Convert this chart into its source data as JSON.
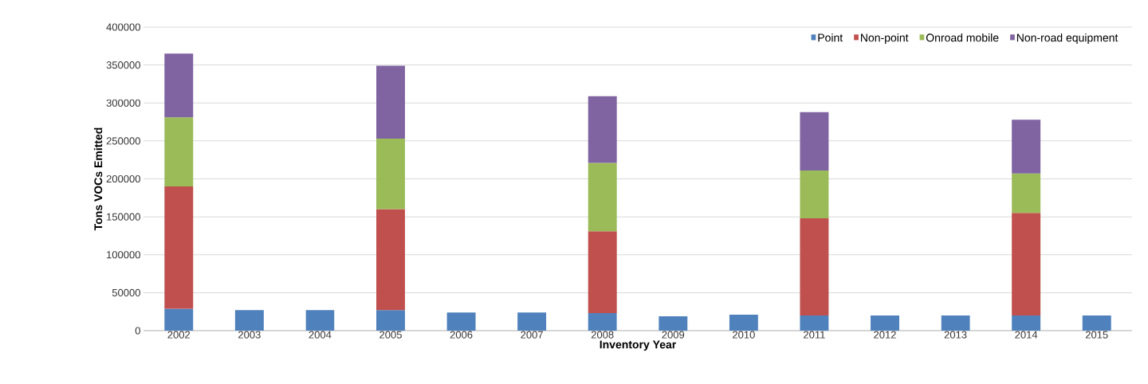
{
  "chart_data": {
    "type": "bar",
    "stacked": true,
    "xlabel": "Inventory Year",
    "ylabel": "Tons VOCs Emitted",
    "categories": [
      "2002",
      "2003",
      "2004",
      "2005",
      "2006",
      "2007",
      "2008",
      "2009",
      "2010",
      "2011",
      "2012",
      "2013",
      "2014",
      "2015"
    ],
    "series": [
      {
        "name": "Point",
        "color": "#4f81bd",
        "values": [
          29000,
          27000,
          27000,
          27000,
          24000,
          24000,
          23000,
          19000,
          21000,
          20000,
          20000,
          20000,
          20000,
          20000
        ]
      },
      {
        "name": "Non-point",
        "color": "#c0504d",
        "values": [
          161000,
          null,
          null,
          133000,
          null,
          null,
          108000,
          null,
          null,
          128000,
          null,
          null,
          135000,
          null
        ]
      },
      {
        "name": "Onroad mobile",
        "color": "#9bbb59",
        "values": [
          91000,
          null,
          null,
          93000,
          null,
          null,
          90000,
          null,
          null,
          63000,
          null,
          null,
          52000,
          null
        ]
      },
      {
        "name": "Non-road equipment",
        "color": "#8064a2",
        "values": [
          84000,
          null,
          null,
          96000,
          null,
          null,
          88000,
          null,
          null,
          77000,
          null,
          null,
          71000,
          null
        ]
      }
    ],
    "ylim": [
      0,
      400000
    ],
    "yticks": [
      0,
      50000,
      100000,
      150000,
      200000,
      250000,
      300000,
      350000,
      400000
    ],
    "grid": "y",
    "legend": "top right"
  }
}
